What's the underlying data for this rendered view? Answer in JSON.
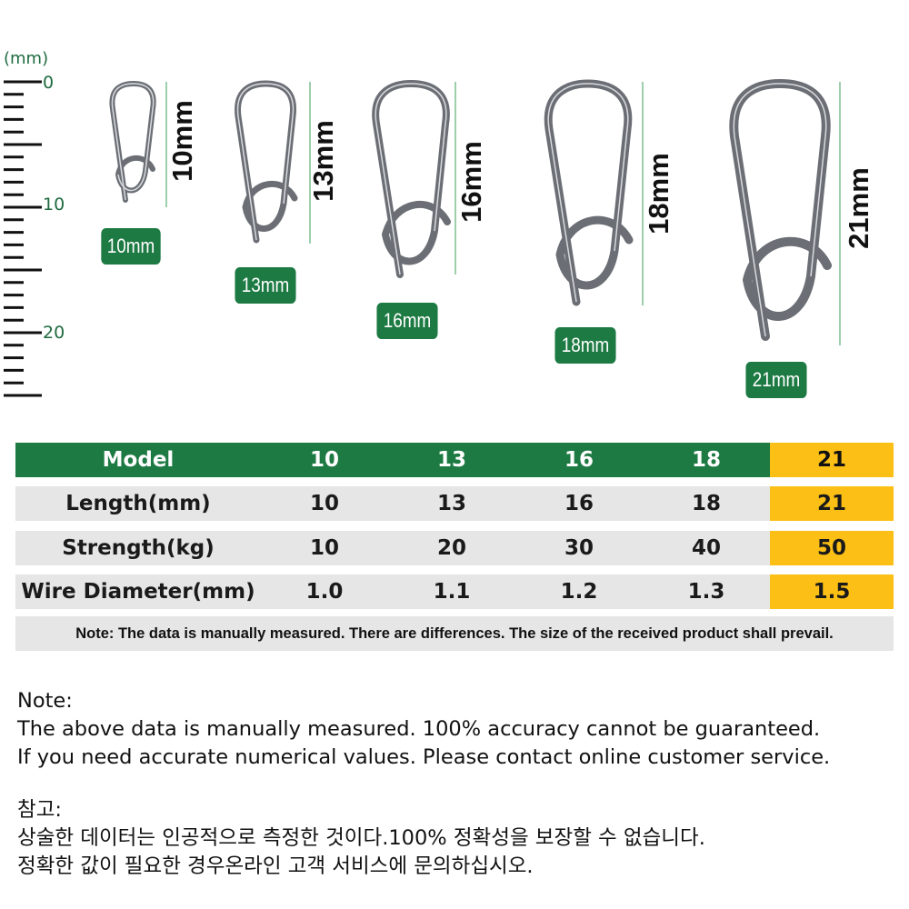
{
  "ruler": {
    "unit": "(mm)",
    "labels": [
      "0",
      "10",
      "20"
    ]
  },
  "snaps": [
    {
      "dimension": "10mm",
      "badge": "10mm"
    },
    {
      "dimension": "13mm",
      "badge": "13mm"
    },
    {
      "dimension": "16mm",
      "badge": "16mm"
    },
    {
      "dimension": "18mm",
      "badge": "18mm"
    },
    {
      "dimension": "21mm",
      "badge": "21mm"
    }
  ],
  "colors": {
    "green": "#1d7a43",
    "highlight": "#fbbf15",
    "row_gray": "#e6e6e6",
    "metal": "#6b6f75"
  },
  "table": {
    "rows": [
      {
        "label": "Model",
        "values": [
          "10",
          "13",
          "16",
          "18",
          "21"
        ]
      },
      {
        "label": "Length(mm)",
        "values": [
          "10",
          "13",
          "16",
          "18",
          "21"
        ]
      },
      {
        "label": "Strength(kg)",
        "values": [
          "10",
          "20",
          "30",
          "40",
          "50"
        ]
      },
      {
        "label": "Wire Diameter(mm)",
        "values": [
          "1.0",
          "1.1",
          "1.2",
          "1.3",
          "1.5"
        ]
      }
    ],
    "note": "Note: The data is manually measured. There are differences. The size of the received product shall prevail."
  },
  "notes": {
    "en": [
      "Note:",
      "The above data is manually measured. 100% accuracy cannot be guaranteed.",
      "If you need accurate numerical values. Please contact online customer service."
    ],
    "ko": [
      "참고:",
      "상술한 데이터는 인공적으로 측정한 것이다.100% 정확성을 보장할 수 없습니다.",
      "정확한 값이 필요한 경우온라인 고객 서비스에 문의하십시오."
    ]
  }
}
